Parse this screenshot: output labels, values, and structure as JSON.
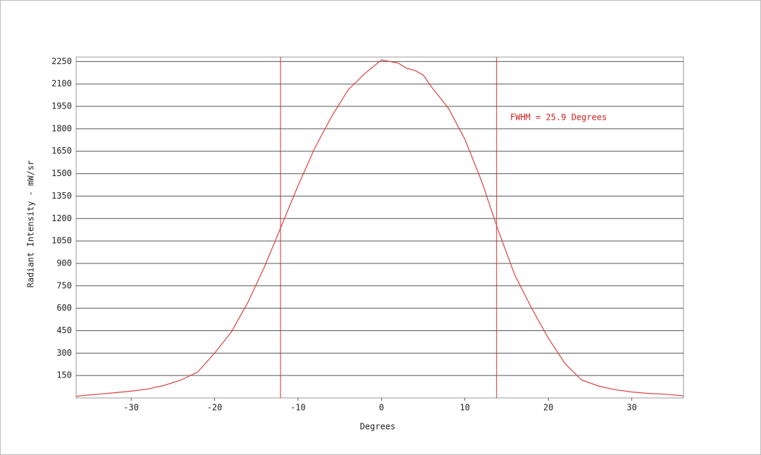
{
  "chart_data": {
    "type": "line",
    "x_label": "Degrees",
    "y_label": "Radiant Intensity - mW/sr",
    "annotation": "FWHM = 25.9 Degrees",
    "x": [
      -36.6,
      -36,
      -34,
      -32,
      -30,
      -28,
      -26,
      -24,
      -22,
      -20,
      -18,
      -16,
      -14,
      -12,
      -10,
      -8,
      -6,
      -4,
      -2,
      0,
      2,
      3,
      4,
      5,
      6,
      8,
      10,
      12,
      14,
      16,
      18,
      20,
      22,
      24,
      26,
      28,
      30,
      32,
      34,
      36,
      36.2
    ],
    "series": [
      {
        "color": "#d94040",
        "values": [
          10,
          15,
          25,
          35,
          45,
          60,
          85,
          120,
          175,
          300,
          440,
          640,
          880,
          1150,
          1420,
          1670,
          1880,
          2060,
          2170,
          2260,
          2240,
          2205,
          2190,
          2160,
          2080,
          1940,
          1730,
          1450,
          1120,
          820,
          600,
          400,
          230,
          120,
          80,
          55,
          40,
          30,
          25,
          15,
          12
        ]
      }
    ],
    "vlines": [
      -12.1,
      13.8
    ],
    "vline_color": "#c83030",
    "xlim": [
      -36.6,
      36.2
    ],
    "ylim": [
      0,
      2280
    ],
    "xticks": [
      -30,
      -20,
      -10,
      0,
      10,
      20,
      30
    ],
    "yticks": [
      150,
      300,
      450,
      600,
      750,
      900,
      1050,
      1200,
      1350,
      1500,
      1650,
      1800,
      1950,
      2100,
      2250
    ],
    "grid": true
  }
}
